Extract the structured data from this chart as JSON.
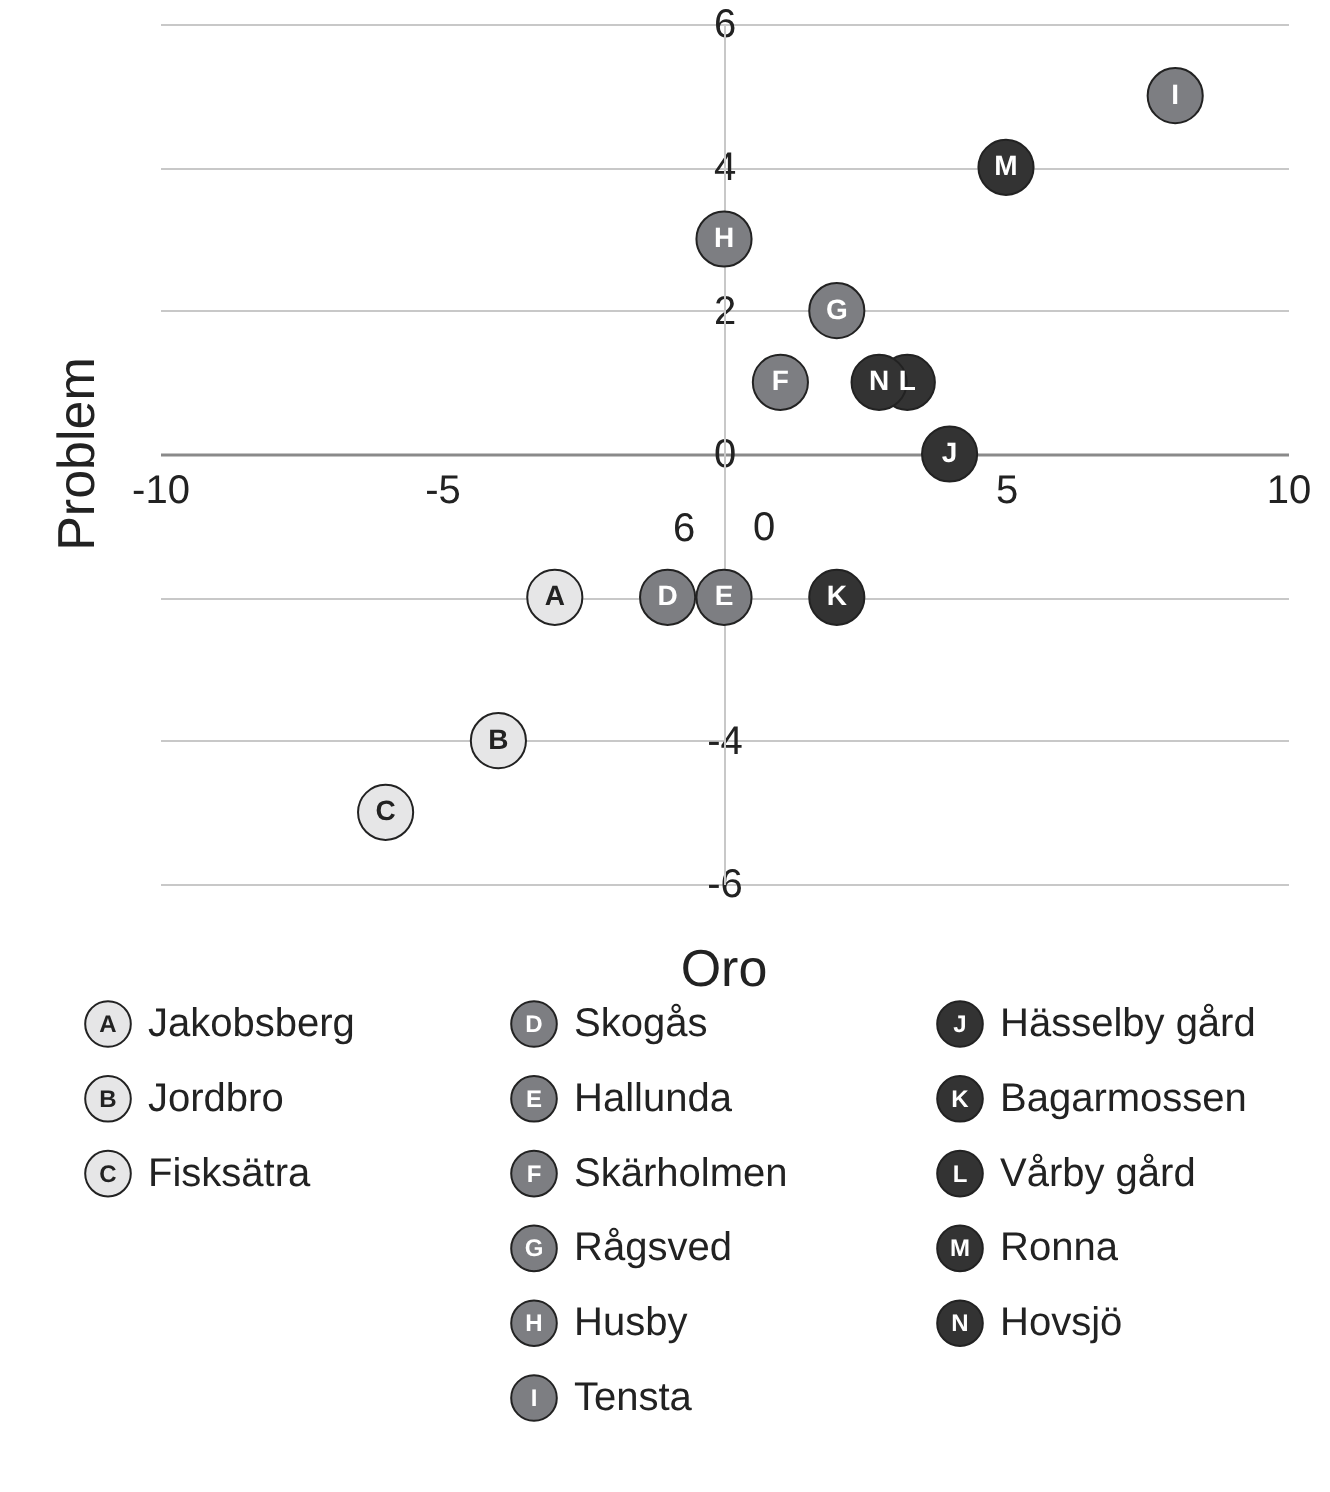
{
  "chart_data": {
    "type": "scatter",
    "xlabel": "Oro",
    "ylabel": "Problem",
    "xlim": [
      -10,
      10
    ],
    "ylim": [
      -6,
      6
    ],
    "xticks": [
      -10,
      -5,
      {
        "value": 0,
        "label": null
      },
      5,
      10
    ],
    "yticks": [
      6,
      4,
      2,
      0,
      {
        "value": -2,
        "label": null
      },
      -4,
      -6
    ],
    "annotations": [
      "6",
      "0"
    ],
    "grid": "y",
    "legend": "bottom",
    "marker": "circle",
    "series": [
      {
        "name": "Jakobsberg",
        "color": "#e6e6e7",
        "x": [
          -3
        ],
        "values": [
          -2
        ],
        "value_labels": [
          "A"
        ]
      },
      {
        "name": "Jordbro",
        "color": "#e6e6e7",
        "x": [
          -4
        ],
        "values": [
          -4
        ],
        "value_labels": [
          "B"
        ]
      },
      {
        "name": "Fisksätra",
        "color": "#e6e6e7",
        "x": [
          -6
        ],
        "values": [
          -5
        ],
        "value_labels": [
          "C"
        ]
      },
      {
        "name": "Skogås",
        "color": "#7d7e82",
        "x": [
          -1
        ],
        "values": [
          -2
        ],
        "value_labels": [
          "D"
        ]
      },
      {
        "name": "Hallunda",
        "color": "#7d7e82",
        "x": [
          0
        ],
        "values": [
          -2
        ],
        "value_labels": [
          "E"
        ]
      },
      {
        "name": "Skärholmen",
        "color": "#7d7e82",
        "x": [
          1
        ],
        "values": [
          1
        ],
        "value_labels": [
          "F"
        ]
      },
      {
        "name": "Rågsved",
        "color": "#7d7e82",
        "x": [
          2
        ],
        "values": [
          2
        ],
        "value_labels": [
          "G"
        ]
      },
      {
        "name": "Husby",
        "color": "#7d7e82",
        "x": [
          0
        ],
        "values": [
          3
        ],
        "value_labels": [
          "H"
        ]
      },
      {
        "name": "Tensta",
        "color": "#7d7e82",
        "x": [
          8
        ],
        "values": [
          5
        ],
        "value_labels": [
          "I"
        ]
      },
      {
        "name": "Hässelby gård",
        "color": "#333333",
        "x": [
          4
        ],
        "values": [
          0
        ],
        "value_labels": [
          "J"
        ]
      },
      {
        "name": "Bagarmossen",
        "color": "#333333",
        "x": [
          2
        ],
        "values": [
          -2
        ],
        "value_labels": [
          "K"
        ]
      },
      {
        "name": "Vårby gård",
        "color": "#333333",
        "x": [
          3.25
        ],
        "values": [
          1
        ],
        "value_labels": [
          "L"
        ]
      },
      {
        "name": "Ronna",
        "color": "#333333",
        "x": [
          5
        ],
        "values": [
          4
        ],
        "value_labels": [
          "M"
        ]
      },
      {
        "name": "Hovsjö",
        "color": "#333333",
        "x": [
          2.75
        ],
        "values": [
          1
        ],
        "value_labels": [
          "N"
        ]
      }
    ]
  }
}
